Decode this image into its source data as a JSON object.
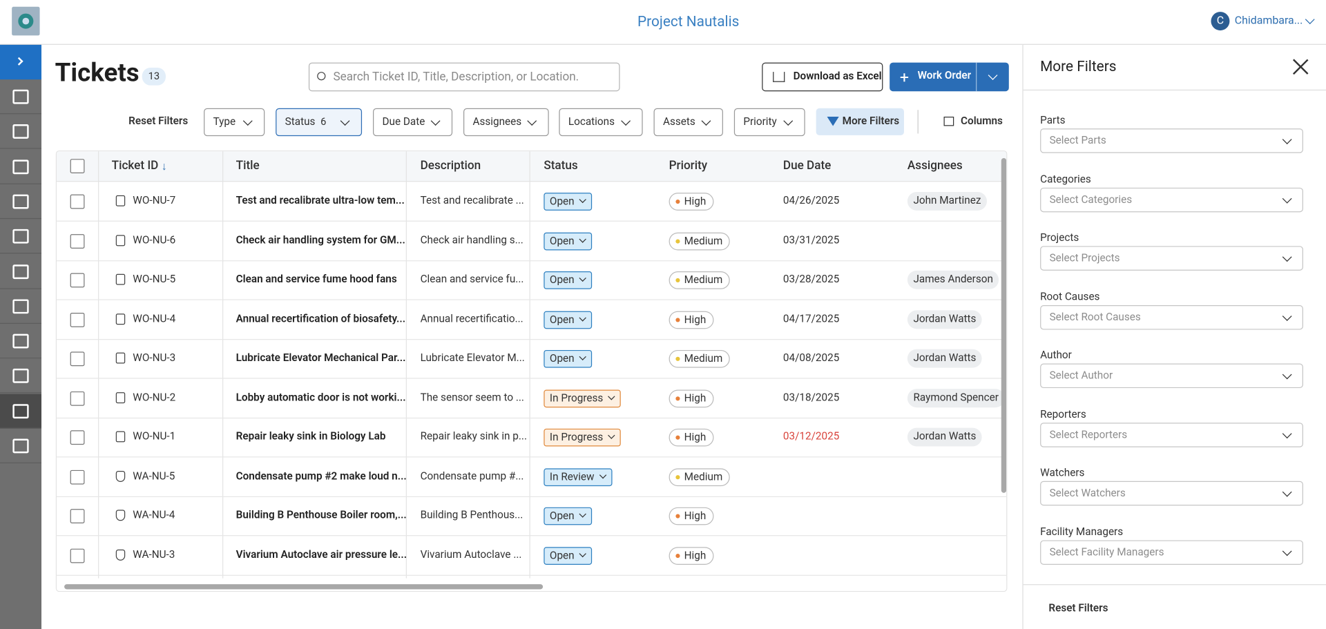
{
  "header": {
    "title": "Project Nautalis",
    "user_initial": "C",
    "user_name": "Chidambara..."
  },
  "page": {
    "title": "Tickets",
    "count": 13,
    "search_placeholder": "Search Ticket ID, Title, Description, or Location.",
    "download": "Download as Excel",
    "create": "Work Order"
  },
  "filters": {
    "reset": "Reset Filters",
    "dropdowns": [
      "Type",
      "Status",
      "Due Date",
      "Assignees",
      "Locations",
      "Assets",
      "Priority"
    ],
    "status_count": 6,
    "more": "More Filters",
    "columns": "Columns"
  },
  "table": {
    "columns": [
      "Ticket ID",
      "Title",
      "Description",
      "Status",
      "Priority",
      "Due Date",
      "Assignees"
    ],
    "rows": [
      {
        "id": "WO-NU-7",
        "title": "Test and recalibrate ultra-low tem...",
        "description": "Test and recalibrate ...",
        "status": "Open",
        "priority": "High",
        "due_date": "04/26/2025",
        "assignee": "John Martinez"
      },
      {
        "id": "WO-NU-6",
        "title": "Check air handling system for GM...",
        "description": "Check air handling s...",
        "status": "Open",
        "priority": "Medium",
        "due_date": "03/31/2025",
        "assignee": null
      },
      {
        "id": "WO-NU-5",
        "title": "Clean and service fume hood fans",
        "description": "Clean and service fu...",
        "status": "Open",
        "priority": "Medium",
        "due_date": "03/28/2025",
        "assignee": "James Anderson"
      },
      {
        "id": "WO-NU-4",
        "title": "Annual recertification of biosafety...",
        "description": "Annual recertificatio...",
        "status": "Open",
        "priority": "High",
        "due_date": "04/17/2025",
        "assignee": "Jordan Watts"
      },
      {
        "id": "WO-NU-3",
        "title": "Lubricate Elevator Mechanical Par...",
        "description": "Lubricate Elevator M...",
        "status": "Open",
        "priority": "Medium",
        "due_date": "04/08/2025",
        "assignee": "Jordan Watts"
      },
      {
        "id": "WO-NU-2",
        "title": "Lobby automatic door is not worki...",
        "description": "The sensor seem to ...",
        "status": "In Progress",
        "priority": "High",
        "due_date": "03/18/2025",
        "assignee": "Raymond Spencer"
      },
      {
        "id": "WO-NU-1",
        "title": "Repair leaky sink in Biology Lab",
        "description": "Repair leaky sink in p...",
        "status": "In Progress",
        "priority": "High",
        "due_date": "03/12/2025",
        "due_date_color": "#d9463e",
        "assignee": "Jordan Watts"
      },
      {
        "id": "WA-NU-5",
        "title": "Condensate pump #2 make loud n...",
        "description": "Condensate pump #...",
        "status": "In Review",
        "priority": "Medium",
        "due_date": null,
        "assignee": null
      },
      {
        "id": "WA-NU-4",
        "title": "Building B Penthouse Boiler room,...",
        "description": "Building B Penthous...",
        "status": "Open",
        "priority": "High",
        "due_date": null,
        "assignee": null
      },
      {
        "id": "WA-NU-3",
        "title": "Vivarium Autoclave air pressure le...",
        "description": "Vivarium Autoclave ...",
        "status": "Open",
        "priority": "High",
        "due_date": null,
        "assignee": null
      }
    ]
  },
  "panel": {
    "title": "More Filters",
    "fields": [
      {
        "label": "Parts",
        "placeholder": "Select Parts"
      },
      {
        "label": "Categories",
        "placeholder": "Select Categories"
      },
      {
        "label": "Projects",
        "placeholder": "Select Projects"
      },
      {
        "label": "Root Causes",
        "placeholder": "Select Root Causes"
      },
      {
        "label": "Author",
        "placeholder": "Select Author"
      },
      {
        "label": "Reporters",
        "placeholder": "Select Reporters"
      },
      {
        "label": "Watchers",
        "placeholder": "Select Watchers"
      },
      {
        "label": "Facility Managers",
        "placeholder": "Select Facility Managers"
      }
    ],
    "reset": "Reset Filters"
  }
}
